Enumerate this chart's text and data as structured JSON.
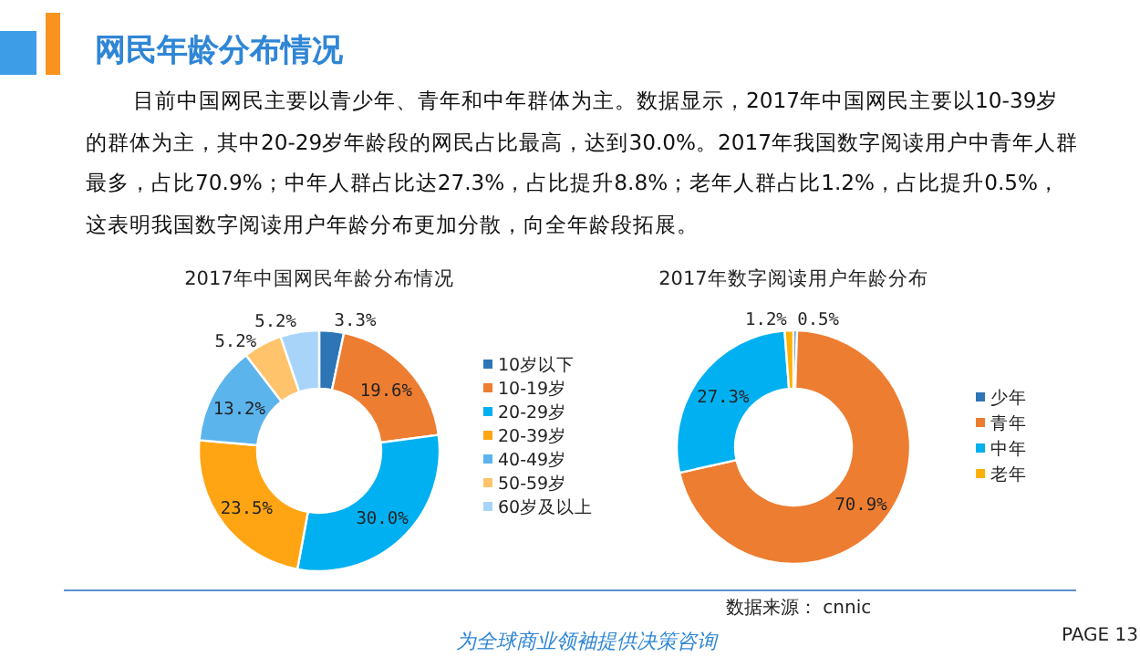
{
  "chart_data": [
    {
      "type": "other",
      "title": "网民年龄分布情况",
      "subtitle": "目前中国网民主要以青少年、青年和中年群体为主。数据显示，2017年中国网民主要以10-39岁的群体为主，其中20-29岁年龄段的网民占比最高，达到30.0%。2017年我国数字阅读用户中青年人群最多，占比70.9%；中年人群占比达27.3%，占比提升8.8%；老年人群占比1.2%，占比提升0.5%，这表明我国数字阅读用户年龄分布更加分散，向全年龄段拓展。",
      "annotations": [
        "数据来源： cnnic",
        "为全球商业领袖提供决策咨询",
        "PAGE  13"
      ]
    },
    {
      "type": "donut",
      "title": "2017年中国网民年龄分布情况",
      "legend": "right",
      "categories": [
        "10岁以下",
        "10-19岁",
        "20-29岁",
        "20-39岁",
        "40-49岁",
        "50-59岁",
        "60岁及以上"
      ],
      "values": [
        3.3,
        19.6,
        30.0,
        23.5,
        13.2,
        5.2,
        5.2
      ],
      "value_labels": [
        "3.3%",
        "19.6%",
        "30.0%",
        "23.5%",
        "13.2%",
        "5.2%",
        "5.2%"
      ],
      "colors": [
        "#2e75b6",
        "#ed7d31",
        "#00b0f0",
        "#ffa514",
        "#5bb4ec",
        "#ffc36b",
        "#a8d4fa"
      ]
    },
    {
      "type": "donut",
      "title": "2017年数字阅读用户年龄分布",
      "legend": "right",
      "categories": [
        "少年",
        "青年",
        "中年",
        "老年"
      ],
      "values": [
        0.5,
        70.9,
        27.3,
        1.2
      ],
      "value_labels": [
        "0.5%",
        "70.9%",
        "27.3%",
        "1.2%"
      ],
      "colors": [
        "#2e75b6",
        "#ed7d31",
        "#00b0f0",
        "#ffb000"
      ]
    }
  ]
}
